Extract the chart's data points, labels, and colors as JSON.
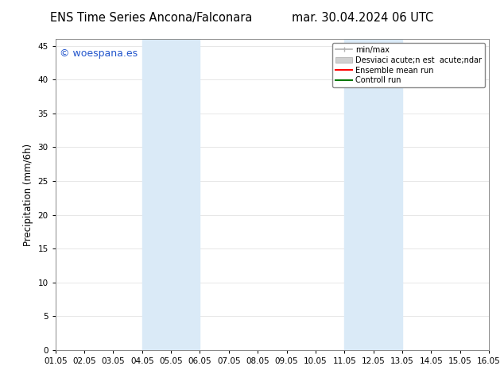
{
  "title_left": "ENS Time Series Ancona/Falconara",
  "title_right": "mar. 30.04.2024 06 UTC",
  "ylabel": "Precipitation (mm/6h)",
  "xlabel": "",
  "xlim_dates": [
    "01.05",
    "02.05",
    "03.05",
    "04.05",
    "05.05",
    "06.05",
    "07.05",
    "08.05",
    "09.05",
    "10.05",
    "11.05",
    "12.05",
    "13.05",
    "14.05",
    "15.05",
    "16.05"
  ],
  "xlim": [
    0,
    15
  ],
  "ylim": [
    0,
    46
  ],
  "yticks": [
    0,
    5,
    10,
    15,
    20,
    25,
    30,
    35,
    40,
    45
  ],
  "shaded_bands": [
    {
      "xmin": 3,
      "xmax": 5,
      "color": "#daeaf7",
      "alpha": 1.0
    },
    {
      "xmin": 10,
      "xmax": 12,
      "color": "#daeaf7",
      "alpha": 1.0
    }
  ],
  "legend_entries": [
    {
      "label": "min/max",
      "color": "#b0b0b0",
      "lw": 1.2
    },
    {
      "label": "Desviaci acute;n est  acute;ndar",
      "color": "#d0d0d0",
      "lw": 6
    },
    {
      "label": "Ensemble mean run",
      "color": "#ff0000",
      "lw": 1.5
    },
    {
      "label": "Controll run",
      "color": "#007700",
      "lw": 1.5
    }
  ],
  "watermark": "© woespana.es",
  "watermark_color": "#2255cc",
  "background_color": "#ffffff",
  "plot_bg_color": "#ffffff",
  "grid_color": "#dddddd",
  "title_fontsize": 10.5,
  "axis_fontsize": 8.5,
  "tick_fontsize": 7.5
}
